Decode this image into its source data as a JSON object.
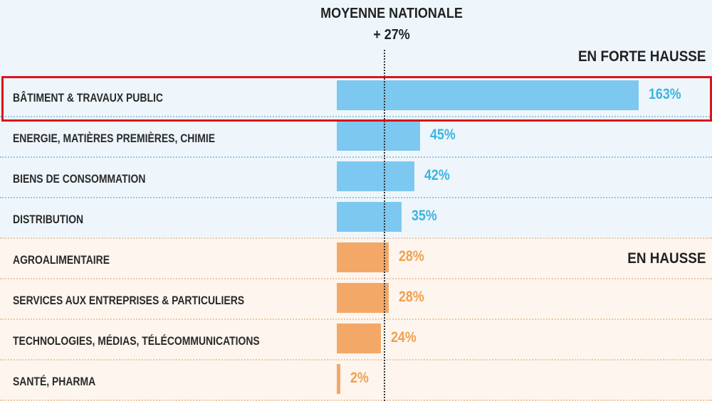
{
  "chart_data": {
    "type": "bar",
    "orientation": "horizontal",
    "reference_line": {
      "label_line1": "MOYENNE NATIONALE",
      "label_line2": "+ 27%",
      "value": 27
    },
    "sections": [
      {
        "label": "EN FORTE HAUSSE",
        "color": "#7cc8f0",
        "text_color": "#3cb4e0"
      },
      {
        "label": "EN HAUSSE",
        "color": "#f4a868",
        "text_color": "#f0a050"
      }
    ],
    "categories": [
      "BÂTIMENT & TRAVAUX PUBLIC",
      "ENERGIE, MATIÈRES PREMIÈRES, CHIMIE",
      "BIENS DE CONSOMMATION",
      "DISTRIBUTION",
      "AGROALIMENTAIRE",
      "SERVICES AUX  ENTREPRISES & PARTICULIERS",
      "TECHNOLOGIES, MÉDIAS, TÉLÉCOMMUNICATIONS",
      "SANTÉ, PHARMA"
    ],
    "values": [
      163,
      45,
      42,
      35,
      28,
      28,
      24,
      2
    ],
    "value_labels": [
      "163%",
      "45%",
      "42%",
      "35%",
      "28%",
      "28%",
      "24%",
      "2%"
    ],
    "section_index": [
      0,
      0,
      0,
      0,
      1,
      1,
      1,
      1
    ],
    "highlighted": "BÂTIMENT & TRAVAUX PUBLIC",
    "highlight_color": "#d8141c"
  }
}
